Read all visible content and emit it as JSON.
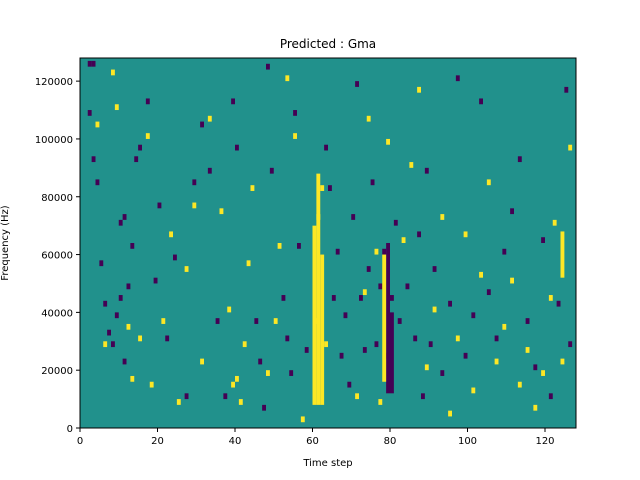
{
  "chart_data": {
    "type": "heatmap",
    "title": "Predicted : Gma",
    "xlabel": "Time step",
    "ylabel": "Frequency (Hz)",
    "xlim": [
      0,
      128
    ],
    "ylim": [
      0,
      128000
    ],
    "x_ticks": [
      "0",
      "20",
      "40",
      "60",
      "80",
      "100",
      "120"
    ],
    "y_ticks": [
      "0",
      "20000",
      "40000",
      "60000",
      "80000",
      "100000",
      "120000"
    ],
    "grid": false,
    "colors": {
      "background": "#21918c",
      "low": "#440154",
      "high": "#fde725"
    },
    "cells": [
      [
        2,
        125000,
        "low"
      ],
      [
        3,
        125000,
        "low"
      ],
      [
        2,
        108000,
        "low"
      ],
      [
        3,
        92000,
        "low"
      ],
      [
        4,
        84000,
        "low"
      ],
      [
        5,
        56000,
        "low"
      ],
      [
        6,
        42000,
        "low"
      ],
      [
        7,
        32000,
        "low"
      ],
      [
        8,
        28000,
        "low"
      ],
      [
        9,
        38000,
        "low"
      ],
      [
        10,
        44000,
        "low"
      ],
      [
        11,
        22000,
        "low"
      ],
      [
        10,
        70000,
        "low"
      ],
      [
        11,
        72000,
        "low"
      ],
      [
        12,
        48000,
        "low"
      ],
      [
        13,
        62000,
        "low"
      ],
      [
        14,
        92000,
        "low"
      ],
      [
        15,
        96000,
        "low"
      ],
      [
        17,
        112000,
        "low"
      ],
      [
        19,
        50000,
        "low"
      ],
      [
        20,
        76000,
        "low"
      ],
      [
        22,
        30000,
        "low"
      ],
      [
        24,
        58000,
        "low"
      ],
      [
        27,
        10000,
        "low"
      ],
      [
        29,
        84000,
        "low"
      ],
      [
        31,
        104000,
        "low"
      ],
      [
        33,
        88000,
        "low"
      ],
      [
        35,
        36000,
        "low"
      ],
      [
        37,
        10000,
        "low"
      ],
      [
        39,
        112000,
        "low"
      ],
      [
        40,
        96000,
        "low"
      ],
      [
        45,
        36000,
        "low"
      ],
      [
        46,
        22000,
        "low"
      ],
      [
        47,
        6000,
        "low"
      ],
      [
        48,
        124000,
        "low"
      ],
      [
        49,
        88000,
        "low"
      ],
      [
        52,
        44000,
        "low"
      ],
      [
        53,
        30000,
        "low"
      ],
      [
        54,
        18000,
        "low"
      ],
      [
        55,
        108000,
        "low"
      ],
      [
        56,
        62000,
        "low"
      ],
      [
        58,
        26000,
        "low"
      ],
      [
        63,
        96000,
        "low"
      ],
      [
        64,
        82000,
        "low"
      ],
      [
        65,
        44000,
        "low"
      ],
      [
        66,
        60000,
        "low"
      ],
      [
        67,
        24000,
        "low"
      ],
      [
        68,
        38000,
        "low"
      ],
      [
        69,
        14000,
        "low"
      ],
      [
        70,
        72000,
        "low"
      ],
      [
        71,
        118000,
        "low"
      ],
      [
        72,
        44000,
        "low"
      ],
      [
        73,
        26000,
        "low"
      ],
      [
        74,
        54000,
        "low"
      ],
      [
        75,
        84000,
        "low"
      ],
      [
        76,
        28000,
        "low"
      ],
      [
        77,
        48000,
        "low"
      ],
      [
        78,
        60000,
        "low"
      ],
      [
        79,
        24000,
        "low"
      ],
      [
        80,
        44000,
        "low"
      ],
      [
        81,
        70000,
        "low"
      ],
      [
        82,
        36000,
        "low"
      ],
      [
        84,
        48000,
        "low"
      ],
      [
        86,
        30000,
        "low"
      ],
      [
        87,
        66000,
        "low"
      ],
      [
        88,
        10000,
        "low"
      ],
      [
        89,
        88000,
        "low"
      ],
      [
        90,
        28000,
        "low"
      ],
      [
        91,
        54000,
        "low"
      ],
      [
        93,
        18000,
        "low"
      ],
      [
        95,
        42000,
        "low"
      ],
      [
        97,
        120000,
        "low"
      ],
      [
        99,
        24000,
        "low"
      ],
      [
        101,
        38000,
        "low"
      ],
      [
        103,
        112000,
        "low"
      ],
      [
        105,
        46000,
        "low"
      ],
      [
        107,
        30000,
        "low"
      ],
      [
        109,
        60000,
        "low"
      ],
      [
        111,
        74000,
        "low"
      ],
      [
        113,
        92000,
        "low"
      ],
      [
        115,
        36000,
        "low"
      ],
      [
        117,
        20000,
        "low"
      ],
      [
        119,
        64000,
        "low"
      ],
      [
        121,
        10000,
        "low"
      ],
      [
        123,
        42000,
        "low"
      ],
      [
        125,
        116000,
        "low"
      ],
      [
        126,
        28000,
        "low"
      ],
      [
        4,
        104000,
        "high"
      ],
      [
        6,
        28000,
        "high"
      ],
      [
        8,
        122000,
        "high"
      ],
      [
        9,
        110000,
        "high"
      ],
      [
        12,
        34000,
        "high"
      ],
      [
        13,
        16000,
        "high"
      ],
      [
        15,
        30000,
        "high"
      ],
      [
        17,
        100000,
        "high"
      ],
      [
        18,
        14000,
        "high"
      ],
      [
        21,
        36000,
        "high"
      ],
      [
        23,
        66000,
        "high"
      ],
      [
        25,
        8000,
        "high"
      ],
      [
        27,
        54000,
        "high"
      ],
      [
        29,
        76000,
        "high"
      ],
      [
        31,
        22000,
        "high"
      ],
      [
        33,
        106000,
        "high"
      ],
      [
        36,
        74000,
        "high"
      ],
      [
        38,
        40000,
        "high"
      ],
      [
        39,
        14000,
        "high"
      ],
      [
        40,
        16000,
        "high"
      ],
      [
        41,
        8000,
        "high"
      ],
      [
        42,
        28000,
        "high"
      ],
      [
        43,
        56000,
        "high"
      ],
      [
        44,
        82000,
        "high"
      ],
      [
        48,
        18000,
        "high"
      ],
      [
        50,
        36000,
        "high"
      ],
      [
        51,
        62000,
        "high"
      ],
      [
        53,
        120000,
        "high"
      ],
      [
        55,
        100000,
        "high"
      ],
      [
        57,
        2000,
        "high"
      ],
      [
        60,
        36000,
        "high"
      ],
      [
        61,
        72000,
        "high"
      ],
      [
        62,
        82000,
        "high"
      ],
      [
        63,
        28000,
        "high"
      ],
      [
        71,
        10000,
        "high"
      ],
      [
        73,
        46000,
        "high"
      ],
      [
        74,
        106000,
        "high"
      ],
      [
        76,
        60000,
        "high"
      ],
      [
        77,
        8000,
        "high"
      ],
      [
        79,
        98000,
        "high"
      ],
      [
        83,
        64000,
        "high"
      ],
      [
        85,
        90000,
        "high"
      ],
      [
        87,
        116000,
        "high"
      ],
      [
        89,
        20000,
        "high"
      ],
      [
        91,
        40000,
        "high"
      ],
      [
        93,
        72000,
        "high"
      ],
      [
        95,
        4000,
        "high"
      ],
      [
        97,
        30000,
        "high"
      ],
      [
        99,
        66000,
        "high"
      ],
      [
        101,
        12000,
        "high"
      ],
      [
        103,
        52000,
        "high"
      ],
      [
        105,
        84000,
        "high"
      ],
      [
        107,
        22000,
        "high"
      ],
      [
        109,
        34000,
        "high"
      ],
      [
        111,
        50000,
        "high"
      ],
      [
        113,
        14000,
        "high"
      ],
      [
        115,
        26000,
        "high"
      ],
      [
        117,
        6000,
        "high"
      ],
      [
        119,
        18000,
        "high"
      ],
      [
        121,
        44000,
        "high"
      ],
      [
        122,
        70000,
        "high"
      ],
      [
        124,
        22000,
        "high"
      ],
      [
        126,
        96000,
        "high"
      ]
    ],
    "columns": [
      [
        60,
        8000,
        70000,
        "high"
      ],
      [
        61,
        8000,
        88000,
        "high"
      ],
      [
        62,
        8000,
        60000,
        "high"
      ],
      [
        79,
        12000,
        64000,
        "low"
      ],
      [
        80,
        12000,
        40000,
        "low"
      ],
      [
        78,
        16000,
        60000,
        "high"
      ],
      [
        124,
        52000,
        68000,
        "high"
      ]
    ]
  }
}
